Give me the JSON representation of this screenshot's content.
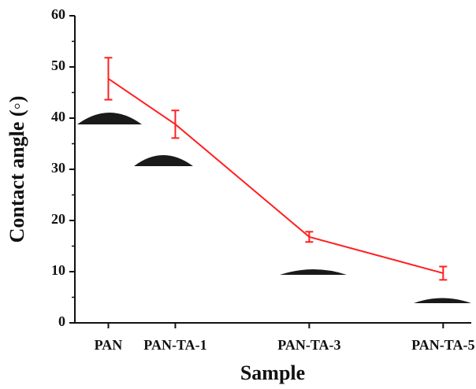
{
  "chart_data": {
    "type": "line",
    "x_label": "Sample",
    "y_label": "Contact angle (◦)",
    "x": [
      0,
      1,
      3,
      5
    ],
    "values": [
      47.7,
      38.8,
      16.8,
      9.7
    ],
    "errors": [
      4.1,
      2.7,
      1.0,
      1.3
    ],
    "color": "#ff2020",
    "xlim": [
      -0.5,
      5.42
    ],
    "xticks": [
      {
        "value": 0,
        "label": "PAN"
      },
      {
        "value": 1,
        "label": "PAN-TA-1"
      },
      {
        "value": 3,
        "label": "PAN-TA-3"
      },
      {
        "value": 5,
        "label": "PAN-TA-5"
      }
    ],
    "ylim": [
      0,
      60
    ],
    "yticks": [
      0,
      10,
      20,
      30,
      40,
      50,
      60
    ],
    "yminorticks": [
      5,
      15,
      25,
      35,
      45,
      55
    ]
  }
}
